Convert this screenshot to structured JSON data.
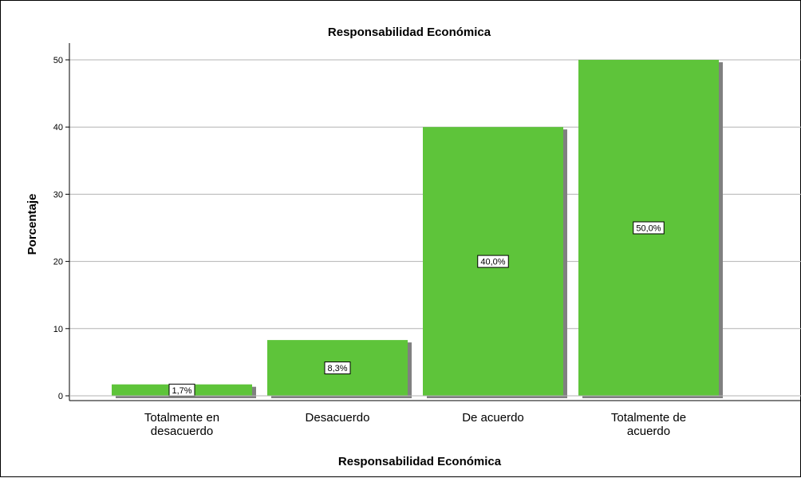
{
  "chart_data": {
    "type": "bar",
    "title": "Responsabilidad Económica",
    "xlabel": "Responsabilidad Económica",
    "ylabel": "Porcentaje",
    "categories": [
      [
        "Totalmente en",
        "desacuerdo"
      ],
      [
        "Desacuerdo"
      ],
      [
        "De acuerdo"
      ],
      [
        "Totalmente de",
        "acuerdo"
      ]
    ],
    "values": [
      1.7,
      8.3,
      40.0,
      50.0
    ],
    "data_labels": [
      "1,7%",
      "8,3%",
      "40,0%",
      "50,0%"
    ],
    "yticks": [
      0,
      10,
      20,
      30,
      40,
      50
    ],
    "ylim": [
      0,
      50
    ],
    "grid": true,
    "bar_color": "#5ec43a",
    "shadow_color": "#808080"
  }
}
